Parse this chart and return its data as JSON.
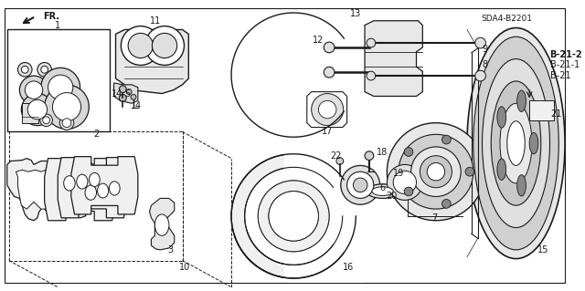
{
  "bg_color": "#ffffff",
  "line_color": "#1a1a1a",
  "part_code": "SDA4-B2201",
  "b21_labels": [
    {
      "text": "B-21",
      "bold": false
    },
    {
      "text": "B-21-1",
      "bold": false
    },
    {
      "text": "B-21-2",
      "bold": true
    }
  ]
}
